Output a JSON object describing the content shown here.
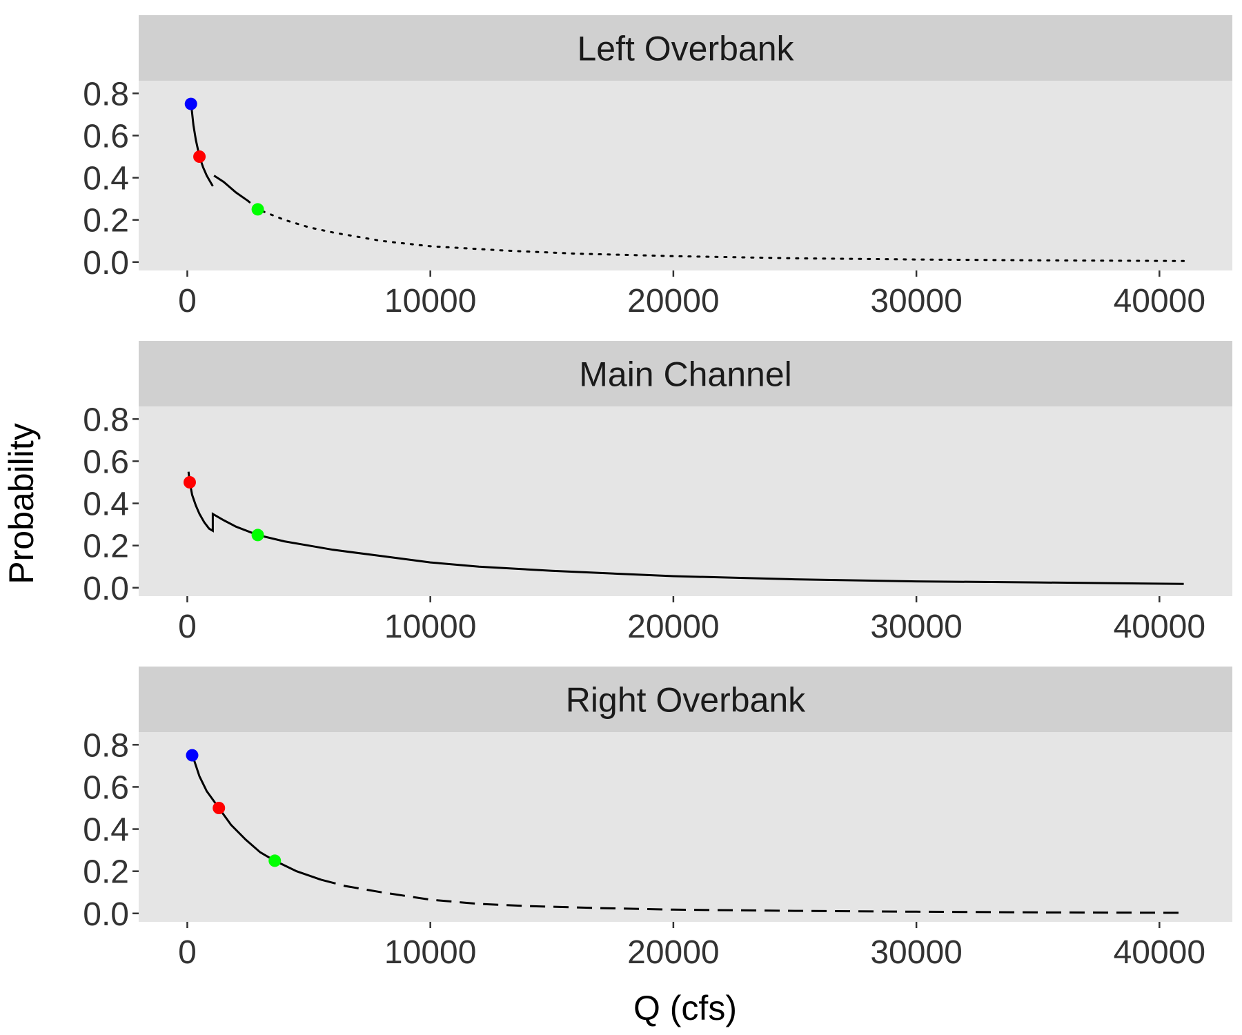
{
  "chart_data": {
    "type": "line",
    "layout": "faceted",
    "xlabel": "Q (cfs)",
    "ylabel": "Probability",
    "xlim": [
      -2000,
      43000
    ],
    "ylim": [
      -0.04,
      0.86
    ],
    "x_ticks": [
      0,
      10000,
      20000,
      30000,
      40000
    ],
    "x_tick_labels": [
      "0",
      "10000",
      "20000",
      "30000",
      "40000"
    ],
    "y_ticks": [
      0.0,
      0.2,
      0.4,
      0.6,
      0.8
    ],
    "y_tick_labels": [
      "0.0",
      "0.2",
      "0.4",
      "0.6",
      "0.8"
    ],
    "background": "#e5e5e5",
    "strip_color": "#d0d0d0",
    "facets": [
      {
        "label": "Left Overbank",
        "segments": [
          {
            "style": "solid",
            "points": [
              [
                150,
                0.76
              ],
              [
                250,
                0.65
              ],
              [
                350,
                0.58
              ],
              [
                500,
                0.5
              ],
              [
                650,
                0.45
              ],
              [
                800,
                0.41
              ],
              [
                950,
                0.38
              ],
              [
                1050,
                0.36
              ]
            ]
          },
          {
            "style": "solid",
            "points": [
              [
                1100,
                0.41
              ],
              [
                1500,
                0.38
              ],
              [
                2000,
                0.33
              ],
              [
                2500,
                0.29
              ]
            ]
          },
          {
            "style": "dotted",
            "points": [
              [
                2500,
                0.29
              ],
              [
                2900,
                0.25
              ],
              [
                4000,
                0.2
              ],
              [
                5000,
                0.165
              ],
              [
                6000,
                0.14
              ],
              [
                8000,
                0.1
              ],
              [
                10000,
                0.075
              ],
              [
                13000,
                0.055
              ],
              [
                16000,
                0.04
              ],
              [
                20000,
                0.028
              ],
              [
                25000,
                0.018
              ],
              [
                30000,
                0.012
              ],
              [
                35000,
                0.008
              ],
              [
                41000,
                0.005
              ]
            ]
          }
        ],
        "markers": [
          {
            "x": 150,
            "y": 0.75,
            "color": "#0000ff"
          },
          {
            "x": 500,
            "y": 0.5,
            "color": "#ff0000"
          },
          {
            "x": 2900,
            "y": 0.25,
            "color": "#00ff00"
          }
        ]
      },
      {
        "label": "Main Channel",
        "segments": [
          {
            "style": "solid",
            "points": [
              [
                50,
                0.55
              ],
              [
                100,
                0.5
              ],
              [
                200,
                0.44
              ],
              [
                350,
                0.39
              ],
              [
                500,
                0.35
              ],
              [
                700,
                0.31
              ],
              [
                900,
                0.28
              ],
              [
                1050,
                0.27
              ],
              [
                1050,
                0.35
              ],
              [
                1500,
                0.32
              ],
              [
                2000,
                0.29
              ],
              [
                2900,
                0.25
              ],
              [
                4000,
                0.22
              ],
              [
                5000,
                0.2
              ],
              [
                6000,
                0.18
              ],
              [
                8000,
                0.15
              ],
              [
                10000,
                0.12
              ],
              [
                12000,
                0.1
              ],
              [
                15000,
                0.08
              ],
              [
                20000,
                0.055
              ],
              [
                25000,
                0.04
              ],
              [
                30000,
                0.03
              ],
              [
                35000,
                0.025
              ],
              [
                41000,
                0.018
              ]
            ]
          }
        ],
        "markers": [
          {
            "x": 100,
            "y": 0.5,
            "color": "#ff0000"
          },
          {
            "x": 2900,
            "y": 0.25,
            "color": "#00ff00"
          }
        ]
      },
      {
        "label": "Right Overbank",
        "segments": [
          {
            "style": "solid",
            "points": [
              [
                200,
                0.77
              ],
              [
                300,
                0.72
              ],
              [
                500,
                0.65
              ],
              [
                800,
                0.58
              ],
              [
                1300,
                0.5
              ],
              [
                1800,
                0.42
              ],
              [
                2400,
                0.35
              ],
              [
                3000,
                0.29
              ],
              [
                3600,
                0.25
              ],
              [
                4500,
                0.2
              ],
              [
                5500,
                0.16
              ]
            ]
          },
          {
            "style": "dashed",
            "points": [
              [
                5500,
                0.16
              ],
              [
                6500,
                0.13
              ],
              [
                8000,
                0.1
              ],
              [
                10000,
                0.065
              ],
              [
                12000,
                0.045
              ],
              [
                14000,
                0.035
              ],
              [
                17000,
                0.025
              ],
              [
                20000,
                0.018
              ],
              [
                25000,
                0.012
              ],
              [
                30000,
                0.008
              ],
              [
                35000,
                0.005
              ],
              [
                41000,
                0.003
              ]
            ]
          }
        ],
        "markers": [
          {
            "x": 200,
            "y": 0.75,
            "color": "#0000ff"
          },
          {
            "x": 1300,
            "y": 0.5,
            "color": "#ff0000"
          },
          {
            "x": 3600,
            "y": 0.25,
            "color": "#00ff00"
          }
        ]
      }
    ]
  }
}
